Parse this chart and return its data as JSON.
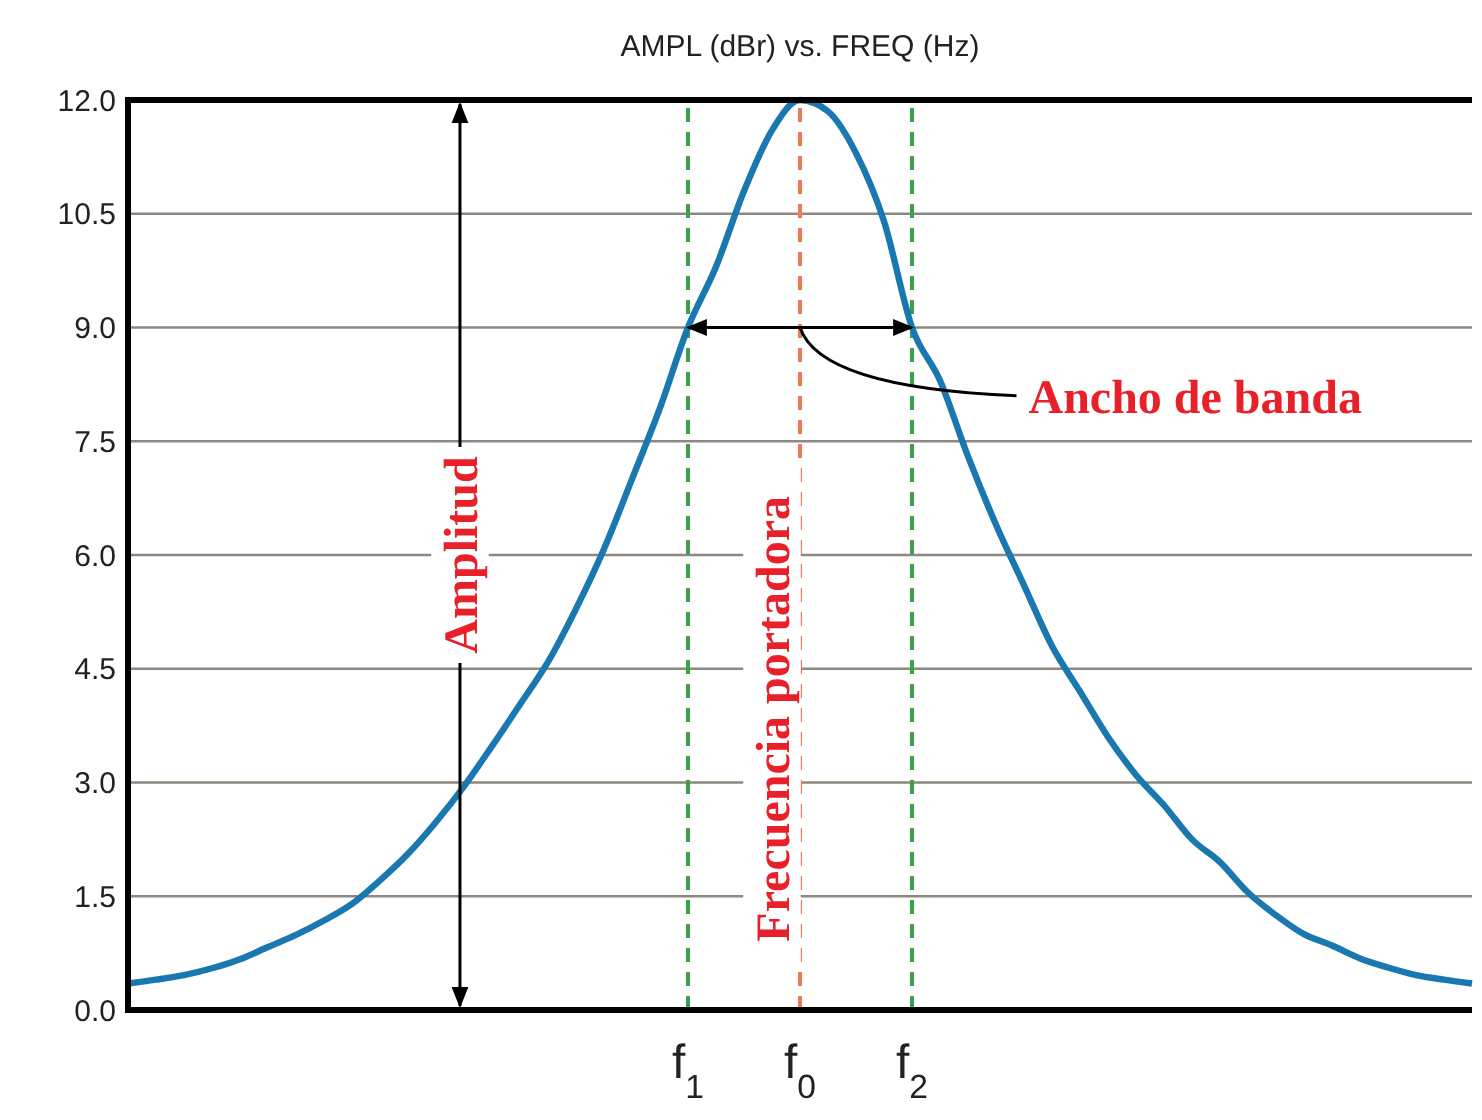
{
  "chart_data": {
    "type": "line",
    "title": "AMPL (dBr) vs. FREQ (Hz)",
    "categories": [
      null,
      null,
      null,
      null,
      null,
      null,
      null,
      null,
      null,
      null,
      null,
      null,
      null,
      null,
      null,
      null,
      null,
      null,
      null,
      null,
      "f$_{1}$",
      null,
      null,
      null,
      "f$_{0}$",
      null,
      null,
      null,
      "f$_{2}$",
      null,
      null,
      null,
      null,
      null,
      null,
      null,
      null,
      null,
      null,
      null,
      null,
      null,
      null,
      null,
      null,
      null,
      null,
      null,
      null
    ],
    "series": [
      {
        "color": "#1a78b0",
        "values": [
          0.35,
          0.4,
          0.46,
          0.55,
          0.67,
          0.83,
          0.99,
          1.18,
          1.4,
          1.71,
          2.06,
          2.48,
          2.95,
          3.48,
          4.03,
          4.59,
          5.29,
          6.08,
          7.0,
          7.94,
          9.0,
          9.8,
          10.8,
          11.6,
          12.0,
          11.85,
          11.3,
          10.4,
          9.0,
          8.3,
          7.3,
          6.4,
          5.6,
          4.8,
          4.2,
          3.6,
          3.1,
          2.7,
          2.25,
          1.95,
          1.55,
          1.25,
          1.0,
          0.85,
          0.68,
          0.56,
          0.46,
          0.4,
          0.35
        ]
      }
    ],
    "ylim": [
      0,
      12
    ],
    "yticks": [
      {
        "value": 0,
        "label": "0.0"
      },
      {
        "value": 1.5,
        "label": "1.5"
      },
      {
        "value": 3,
        "label": "3.0"
      },
      {
        "value": 4.5,
        "label": "4.5"
      },
      {
        "value": 6,
        "label": "6.0"
      },
      {
        "value": 7.5,
        "label": "7.5"
      },
      {
        "value": 9,
        "label": "9.0"
      },
      {
        "value": 10.5,
        "label": "10.5"
      },
      {
        "value": 12,
        "label": "12.0"
      }
    ],
    "grid": "y",
    "marker": "none",
    "line_style": "solid",
    "ref_lines": [
      {
        "axis": "x",
        "value": "f$_{1}$",
        "color": "#3aa14a",
        "line_style": "dashed"
      },
      {
        "axis": "x",
        "value": "f$_{0}$",
        "color": "#f07a5a",
        "line_style": "dashed"
      },
      {
        "axis": "x",
        "value": "f$_{2}$",
        "color": "#3aa14a",
        "line_style": "dashed"
      }
    ],
    "annotations": [
      "Amplitud",
      "Frecuencia portadora",
      {
        "text": "Ancho de banda",
        "x": "f$_{0}$",
        "y": 9
      }
    ]
  }
}
